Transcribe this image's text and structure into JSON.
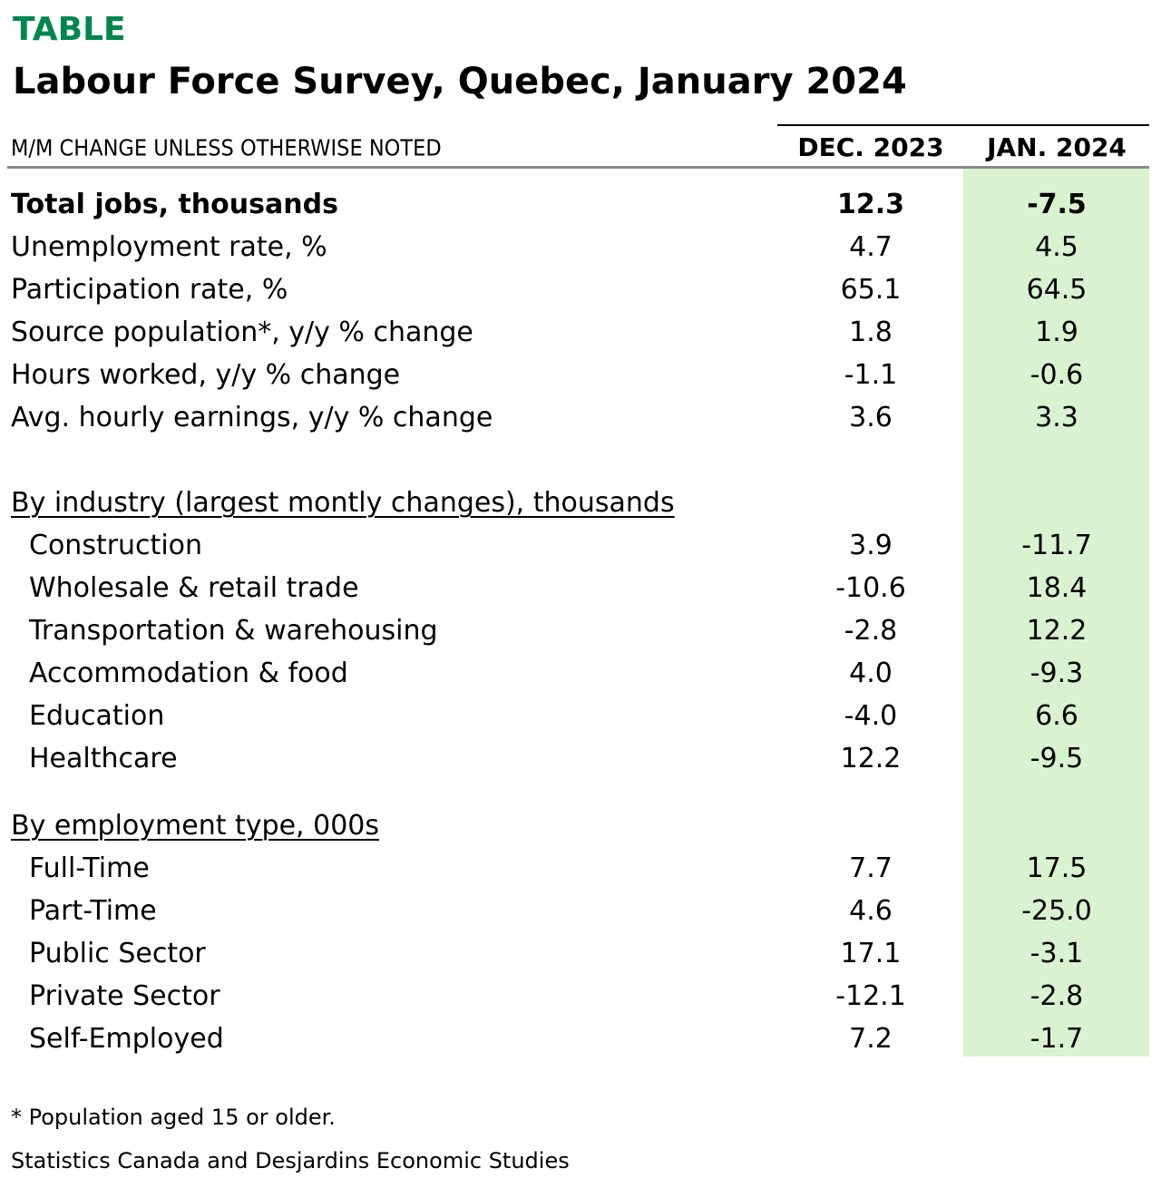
{
  "header": {
    "label": "TABLE",
    "title": "Labour Force Survey, Quebec, January 2024"
  },
  "table": {
    "note": "M/M CHANGE UNLESS OTHERWISE NOTED",
    "columns": [
      "DEC. 2023",
      "JAN. 2024"
    ],
    "summary": [
      [
        "Total jobs, thousands",
        "12.3",
        "-7.5"
      ],
      [
        "Unemployment rate, %",
        "4.7",
        "4.5"
      ],
      [
        "Participation rate, %",
        "65.1",
        "64.5"
      ],
      [
        "Source population*, y/y % change",
        "1.8",
        "1.9"
      ],
      [
        "Hours worked, y/y % change",
        "-1.1",
        "-0.6"
      ],
      [
        "Avg. hourly earnings, y/y % change",
        "3.6",
        "3.3"
      ]
    ],
    "sections": [
      {
        "title": "By industry (largest montly changes), thousands",
        "rows": [
          [
            "Construction",
            "3.9",
            "-11.7"
          ],
          [
            "Wholesale & retail trade",
            "-10.6",
            "18.4"
          ],
          [
            "Transportation & warehousing",
            "-2.8",
            "12.2"
          ],
          [
            "Accommodation & food",
            "4.0",
            "-9.3"
          ],
          [
            "Education",
            "-4.0",
            "6.6"
          ],
          [
            "Healthcare",
            "12.2",
            "-9.5"
          ]
        ]
      },
      {
        "title": "By employment type, 000s",
        "rows": [
          [
            "Full-Time",
            "7.7",
            "17.5"
          ],
          [
            "Part-Time",
            "4.6",
            "-25.0"
          ],
          [
            "Public Sector",
            "17.1",
            "-3.1"
          ],
          [
            "Private Sector",
            "-12.1",
            "-2.8"
          ],
          [
            "Self-Employed",
            "7.2",
            "-1.7"
          ]
        ]
      }
    ]
  },
  "footnote": "* Population aged 15 or older.",
  "source": "Statistics Canada and Desjardins Economic Studies"
}
